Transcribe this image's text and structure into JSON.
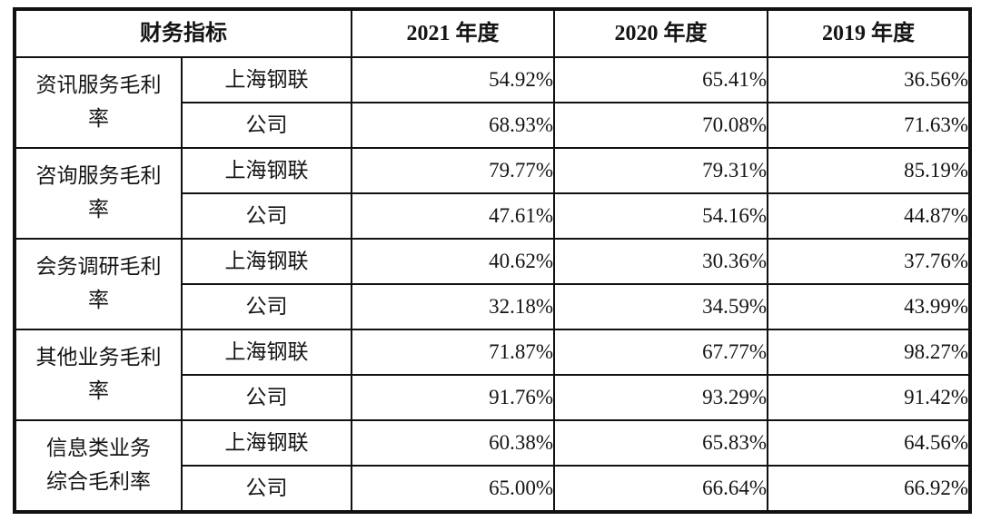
{
  "page": {
    "background_color": "#ffffff",
    "border_color": "#111111",
    "text_color": "#141414"
  },
  "table": {
    "header": {
      "indicator_label": "财务指标",
      "year_labels": [
        "2021 年度",
        "2020 年度",
        "2019 年度"
      ]
    },
    "groups": [
      {
        "indicator": "资讯服务毛利\n率",
        "rows": [
          {
            "entity": "上海钢联",
            "values": [
              "54.92%",
              "65.41%",
              "36.56%"
            ]
          },
          {
            "entity": "公司",
            "values": [
              "68.93%",
              "70.08%",
              "71.63%"
            ]
          }
        ]
      },
      {
        "indicator": "咨询服务毛利\n率",
        "rows": [
          {
            "entity": "上海钢联",
            "values": [
              "79.77%",
              "79.31%",
              "85.19%"
            ]
          },
          {
            "entity": "公司",
            "values": [
              "47.61%",
              "54.16%",
              "44.87%"
            ]
          }
        ]
      },
      {
        "indicator": "会务调研毛利\n率",
        "rows": [
          {
            "entity": "上海钢联",
            "values": [
              "40.62%",
              "30.36%",
              "37.76%"
            ]
          },
          {
            "entity": "公司",
            "values": [
              "32.18%",
              "34.59%",
              "43.99%"
            ]
          }
        ]
      },
      {
        "indicator": "其他业务毛利\n率",
        "rows": [
          {
            "entity": "上海钢联",
            "values": [
              "71.87%",
              "67.77%",
              "98.27%"
            ]
          },
          {
            "entity": "公司",
            "values": [
              "91.76%",
              "93.29%",
              "91.42%"
            ]
          }
        ]
      },
      {
        "indicator": "信息类业务\n综合毛利率",
        "rows": [
          {
            "entity": "上海钢联",
            "values": [
              "60.38%",
              "65.83%",
              "64.56%"
            ]
          },
          {
            "entity": "公司",
            "values": [
              "65.00%",
              "66.64%",
              "66.92%"
            ]
          }
        ]
      }
    ]
  }
}
